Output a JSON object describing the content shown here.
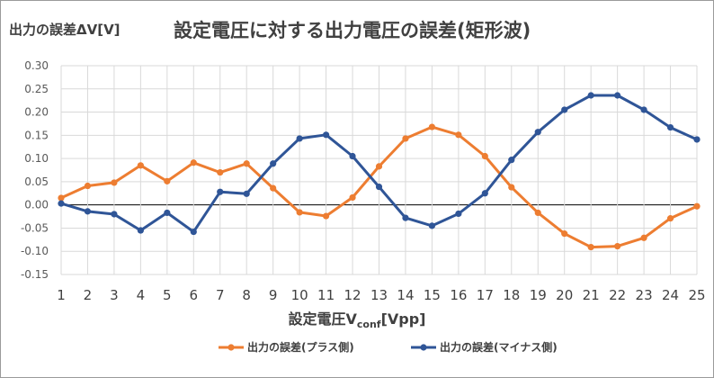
{
  "chart_data": {
    "type": "line",
    "title": "設定電圧に対する出力電圧の誤差(矩形波)",
    "ylabel": "出力の誤差ΔV[V]",
    "xlabel": {
      "main": "設定電圧V",
      "subscript": "conf",
      "unit": "[Vpp]"
    },
    "x": [
      1,
      2,
      3,
      4,
      5,
      6,
      7,
      8,
      9,
      10,
      11,
      12,
      13,
      14,
      15,
      16,
      17,
      18,
      19,
      20,
      21,
      22,
      23,
      24,
      25
    ],
    "ylim": [
      -0.15,
      0.3
    ],
    "yticks": [
      "0.30",
      "0.25",
      "0.20",
      "0.15",
      "0.10",
      "0.05",
      "0.00",
      "-0.05",
      "-0.10",
      "-0.15"
    ],
    "ytick_values": [
      0.3,
      0.25,
      0.2,
      0.15,
      0.1,
      0.05,
      0.0,
      -0.05,
      -0.1,
      -0.15
    ],
    "grid": true,
    "legend_position": "bottom",
    "series": [
      {
        "name": "出力の誤差(プラス側)",
        "color": "#ED7D31",
        "values": [
          0.015,
          0.041,
          0.048,
          0.085,
          0.051,
          0.091,
          0.07,
          0.089,
          0.036,
          -0.016,
          -0.024,
          0.016,
          0.083,
          0.143,
          0.168,
          0.151,
          0.105,
          0.038,
          -0.017,
          -0.062,
          -0.091,
          -0.089,
          -0.071,
          -0.029,
          -0.003
        ]
      },
      {
        "name": "出力の誤差(マイナス側)",
        "color": "#2F5597",
        "values": [
          0.003,
          -0.014,
          -0.02,
          -0.055,
          -0.017,
          -0.058,
          0.028,
          0.024,
          0.089,
          0.143,
          0.151,
          0.105,
          0.039,
          -0.028,
          -0.045,
          -0.019,
          0.025,
          0.097,
          0.157,
          0.205,
          0.236,
          0.236,
          0.205,
          0.167,
          0.141
        ]
      }
    ]
  }
}
